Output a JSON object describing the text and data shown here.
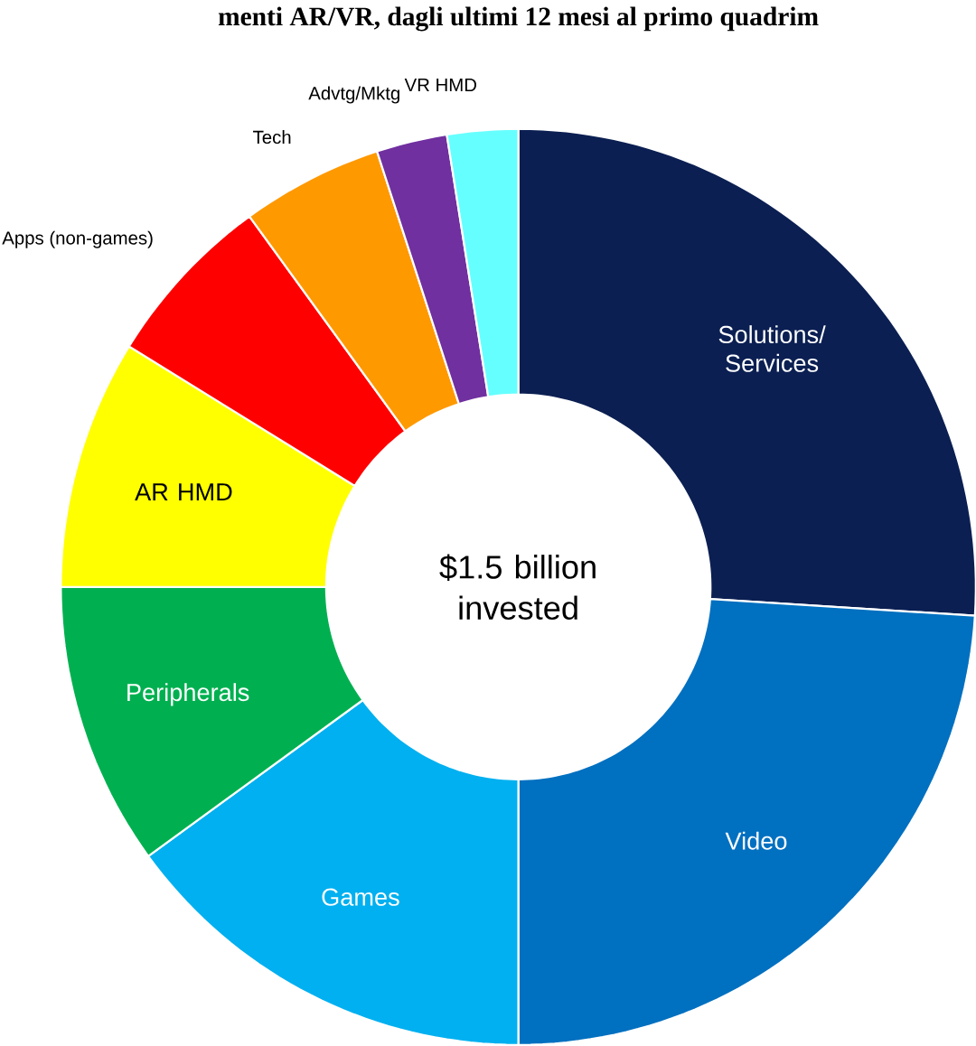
{
  "chart_data": {
    "type": "donut",
    "title": "menti AR/VR, dagli ultimi 12 mesi al primo quadrim",
    "categories": [
      "Solutions/ Services",
      "Video",
      "Games",
      "Peripherals",
      "AR HMD",
      "Apps (non-games)",
      "Tech",
      "Advtg/Mktg",
      "VR HMD"
    ],
    "values": [
      26,
      24,
      15,
      10,
      8.8,
      6.2,
      5,
      2.5,
      2.5
    ],
    "colors": [
      "#0b1f52",
      "#0070c0",
      "#00b0f0",
      "#00b050",
      "#ffff00",
      "#ff0000",
      "#ff9900",
      "#7030a0",
      "#66ffff"
    ],
    "annotations": [
      "$1.5 billion invested"
    ]
  }
}
